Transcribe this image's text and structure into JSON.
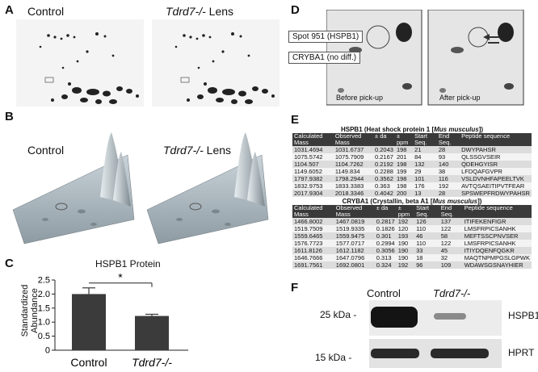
{
  "panels": {
    "A": {
      "label": "A",
      "left_title": "Control",
      "right_title_italic": "Tdrd7-/-",
      "right_title_rest": " Lens"
    },
    "B": {
      "label": "B",
      "left_title": "Control",
      "right_title_italic": "Tdrd7-/-",
      "right_title_rest": " Lens"
    },
    "C": {
      "label": "C"
    },
    "D": {
      "label": "D",
      "spot_label": "Spot 951 (HSPB1)",
      "cryba_label": "CRYBA1 (no diff.)",
      "before": "Before pick-up",
      "after": "After pick-up"
    },
    "E": {
      "label": "E"
    },
    "F": {
      "label": "F",
      "control": "Control",
      "knockout": "Tdrd7-/-",
      "kda25": "25 kDa -",
      "kda15": "15 kDa -",
      "band1": "HSPB1",
      "band2": "HPRT"
    }
  },
  "chart_data": {
    "type": "bar",
    "title": "HSPB1 Protein",
    "ylabel": "Standardized Abundance",
    "categories": [
      "Control",
      "Tdrd7-/-"
    ],
    "values": [
      2.0,
      1.22
    ],
    "errors": [
      0.22,
      0.06
    ],
    "ylim": [
      0,
      2.5
    ],
    "yticks": [
      "0",
      "0.5",
      "1.0",
      "1.5",
      "2.0",
      "2.5"
    ],
    "significance": "*"
  },
  "tables": [
    {
      "title_prefix": "HSPB1 (Heat shock protein 1 [",
      "title_species": "Mus musculus",
      "title_suffix": "])",
      "headers": [
        "Calculated Mass",
        "Observed Mass",
        "± da",
        "± ppm",
        "Start Seq.",
        "End Seq.",
        "Peptide sequence"
      ],
      "rows": [
        [
          "1031.4694",
          "1031.6737",
          "0.2043",
          "198",
          "21",
          "28",
          "DWYPAHSR"
        ],
        [
          "1075.5742",
          "1075.7909",
          "0.2167",
          "201",
          "84",
          "93",
          "QLSSGVSEIR"
        ],
        [
          "1104.507",
          "1104.7262",
          "0.2192",
          "198",
          "132",
          "140",
          "QDEHGYISR"
        ],
        [
          "1149.6052",
          "1149.834",
          "0.2288",
          "199",
          "29",
          "38",
          "LFDQAFGVPR"
        ],
        [
          "1797.9382",
          "1798.2944",
          "0.3562",
          "198",
          "101",
          "116",
          "VSLDVNHFAPEELTVK"
        ],
        [
          "1832.9753",
          "1833.3383",
          "0.363",
          "198",
          "176",
          "192",
          "AVTQSAEITIPVTFEAR"
        ],
        [
          "2017.9304",
          "2018.3346",
          "0.4042",
          "200",
          "13",
          "28",
          "SPSWEPFRDWYPAHSR"
        ]
      ]
    },
    {
      "title_prefix": "CRYBA1 (Crystallin, beta A1 [",
      "title_species": "Mus musculus",
      "title_suffix": "])",
      "headers": [
        "Calculated Mass",
        "Observed Mass",
        "± da",
        "± ppm",
        "Start Seq.",
        "End Seq.",
        "Peptide sequence"
      ],
      "rows": [
        [
          "1466.8002",
          "1467.0819",
          "0.2817",
          "192",
          "126",
          "137",
          "ITIFEKENFIGR"
        ],
        [
          "1519.7509",
          "1519.9335",
          "0.1826",
          "120",
          "110",
          "122",
          "LMSFRPICSANHK"
        ],
        [
          "1559.6465",
          "1559.9475",
          "0.301",
          "193",
          "46",
          "58",
          "MEFTSSCPNVSER"
        ],
        [
          "1576.7723",
          "1577.0717",
          "0.2994",
          "190",
          "110",
          "122",
          "LMSFRPICSANHK"
        ],
        [
          "1611.8126",
          "1612.1182",
          "0.3056",
          "190",
          "33",
          "45",
          "ITIYDQENFQGKR"
        ],
        [
          "1646.7666",
          "1647.0796",
          "0.313",
          "190",
          "18",
          "32",
          "MAQTNPMPGSLGPWK"
        ],
        [
          "1691.7561",
          "1692.0801",
          "0.324",
          "192",
          "96",
          "109",
          "WDAWSGSNAYHIER"
        ]
      ]
    }
  ]
}
